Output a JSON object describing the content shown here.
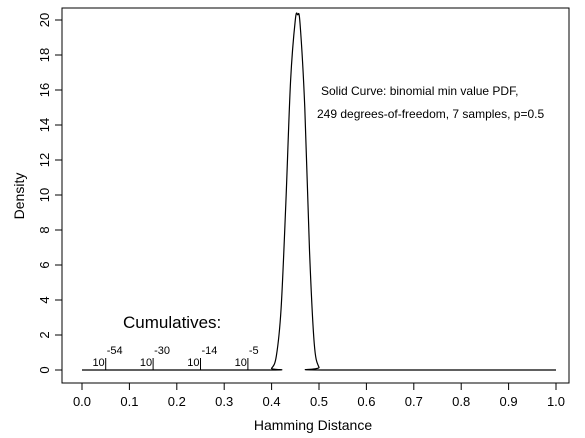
{
  "chart_data": {
    "type": "line",
    "xlabel": "Hamming Distance",
    "ylabel": "Density",
    "xlim": [
      0.0,
      1.0
    ],
    "ylim": [
      0,
      20
    ],
    "x_ticks": [
      0.0,
      0.1,
      0.2,
      0.3,
      0.4,
      0.5,
      0.6,
      0.7,
      0.8,
      0.9,
      1.0
    ],
    "x_tick_labels": [
      "0.0",
      "0.1",
      "0.2",
      "0.3",
      "0.4",
      "0.5",
      "0.6",
      "0.7",
      "0.8",
      "0.9",
      "1.0"
    ],
    "y_ticks": [
      0,
      2,
      4,
      6,
      8,
      10,
      12,
      14,
      16,
      18,
      20
    ],
    "y_tick_labels": [
      "0",
      "2",
      "4",
      "6",
      "8",
      "10",
      "12",
      "14",
      "16",
      "18",
      "20"
    ],
    "grid": false,
    "series": [
      {
        "style": "solid",
        "color": "#000000",
        "x": [
          0.0,
          0.39,
          0.4,
          0.41,
          0.42,
          0.43,
          0.44,
          0.45,
          0.455,
          0.46,
          0.47,
          0.48,
          0.49,
          0.5,
          0.51,
          1.0
        ],
        "y": [
          0.0,
          0.0,
          0.1,
          0.8,
          3.5,
          9.5,
          16.5,
          20.0,
          20.3,
          19.8,
          15.0,
          6.8,
          1.5,
          0.15,
          0.0,
          0.0
        ]
      }
    ],
    "annotation": {
      "line1": "Solid Curve:  binomial min value PDF,",
      "line2": "249 degrees-of-freedom, 7 samples, p=0.5"
    },
    "cumulatives": {
      "title": "Cumulatives:",
      "markers": [
        {
          "x": 0.05,
          "base": "10",
          "exponent": "-54"
        },
        {
          "x": 0.15,
          "base": "10",
          "exponent": "-30"
        },
        {
          "x": 0.25,
          "base": "10",
          "exponent": "-14"
        },
        {
          "x": 0.35,
          "base": "10",
          "exponent": "-5"
        }
      ]
    }
  }
}
